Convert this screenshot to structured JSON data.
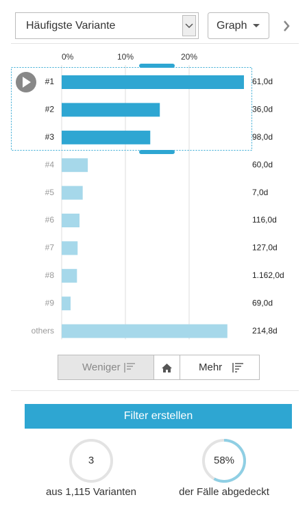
{
  "toolbar": {
    "dropdown": "Häufigste Variante",
    "view_button": "Graph"
  },
  "chart_data": {
    "type": "bar",
    "orientation": "horizontal",
    "categories": [
      "#1",
      "#2",
      "#3",
      "#4",
      "#5",
      "#6",
      "#7",
      "#8",
      "#9",
      "others"
    ],
    "values": [
      28.6,
      15.4,
      13.9,
      4.1,
      3.3,
      2.8,
      2.5,
      2.4,
      1.4,
      26.0
    ],
    "durations": [
      "61,0d",
      "36,0d",
      "98,0d",
      "60,0d",
      "7,0d",
      "116,0d",
      "127,0d",
      "1.162,0d",
      "69,0d",
      "214,8d"
    ],
    "colors": [
      "#2ea6d2",
      "#2ea6d2",
      "#2ea6d2",
      "#a6d8ea",
      "#a6d8ea",
      "#a6d8ea",
      "#a6d8ea",
      "#a6d8ea",
      "#a6d8ea",
      "#a6d8ea"
    ],
    "xlim": [
      0,
      29
    ],
    "xticks": [
      {
        "value": 0,
        "label": "0%"
      },
      {
        "value": 10,
        "label": "10%"
      },
      {
        "value": 20,
        "label": "20%"
      }
    ],
    "grid": true
  },
  "buttons": {
    "less": "Weniger",
    "more": "Mehr",
    "filter": "Filter erstellen"
  },
  "stats": {
    "variants": {
      "value": 3,
      "caption": "aus 1,115 Varianten"
    },
    "coverage": {
      "value": 58,
      "label": "58%",
      "caption": "der Fälle abgedeckt"
    }
  }
}
